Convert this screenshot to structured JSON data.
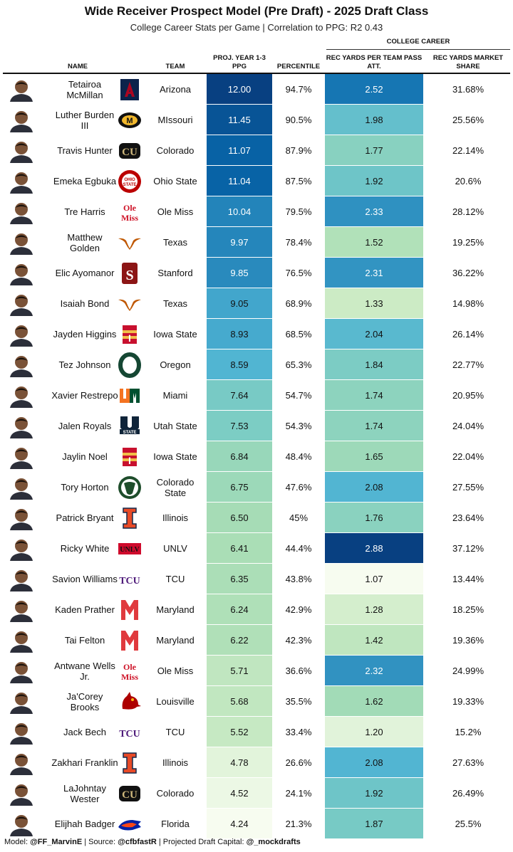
{
  "title": "Wide Receiver Prospect Model (Pre Draft) - 2025 Draft Class",
  "subtitle": "College Career Stats per Game | Correlation to PPG: R2 0.43",
  "group_header": "COLLEGE CAREER",
  "columns": {
    "name": "NAME",
    "team": "TEAM",
    "ppg": "PROJ. YEAR 1-3 PPG",
    "percentile": "PERCENTILE",
    "ypa": "REC YARDS PER TEAM PASS ATT.",
    "market_share": "REC YARDS MARKET SHARE"
  },
  "footer": {
    "model_label": "Model: ",
    "model_handle": "@FF_MarvinE",
    "source_label": " | Source: ",
    "source_handle": "@cfbfastR",
    "capital_label": " | Projected Draft Capital: ",
    "capital_handle": "@_mockdrafts"
  },
  "colors": {
    "ppg_scale": [
      "#f7fcf0",
      "#ccebc5",
      "#a8ddb5",
      "#7bccc4",
      "#4eb3d3",
      "#2b8cbe",
      "#0868ac",
      "#084081"
    ]
  },
  "chart_data": {
    "type": "table",
    "ppg_range": [
      4.24,
      12.0
    ],
    "ypa_range": [
      1.07,
      2.88
    ],
    "rows": [
      {
        "name": "Tetairoa McMillan",
        "team": "Arizona",
        "logo": "arizona-logo",
        "ppg": "12.00",
        "percentile": "94.7%",
        "ypa": "2.52",
        "market_share": "31.68%"
      },
      {
        "name": "Luther Burden III",
        "team": "MIssouri",
        "logo": "missouri-logo",
        "ppg": "11.45",
        "percentile": "90.5%",
        "ypa": "1.98",
        "market_share": "25.56%"
      },
      {
        "name": "Travis Hunter",
        "team": "Colorado",
        "logo": "colorado-logo",
        "ppg": "11.07",
        "percentile": "87.9%",
        "ypa": "1.77",
        "market_share": "22.14%"
      },
      {
        "name": "Emeka Egbuka",
        "team": "Ohio State",
        "logo": "ohio-state-logo",
        "ppg": "11.04",
        "percentile": "87.5%",
        "ypa": "1.92",
        "market_share": "20.6%"
      },
      {
        "name": "Tre Harris",
        "team": "Ole Miss",
        "logo": "ole-miss-logo",
        "ppg": "10.04",
        "percentile": "79.5%",
        "ypa": "2.33",
        "market_share": "28.12%"
      },
      {
        "name": "Matthew Golden",
        "team": "Texas",
        "logo": "texas-logo",
        "ppg": "9.97",
        "percentile": "78.4%",
        "ypa": "1.52",
        "market_share": "19.25%"
      },
      {
        "name": "Elic Ayomanor",
        "team": "Stanford",
        "logo": "stanford-logo",
        "ppg": "9.85",
        "percentile": "76.5%",
        "ypa": "2.31",
        "market_share": "36.22%"
      },
      {
        "name": "Isaiah Bond",
        "team": "Texas",
        "logo": "texas-logo",
        "ppg": "9.05",
        "percentile": "68.9%",
        "ypa": "1.33",
        "market_share": "14.98%"
      },
      {
        "name": "Jayden Higgins",
        "team": "Iowa State",
        "logo": "iowa-state-logo",
        "ppg": "8.93",
        "percentile": "68.5%",
        "ypa": "2.04",
        "market_share": "26.14%"
      },
      {
        "name": "Tez Johnson",
        "team": "Oregon",
        "logo": "oregon-logo",
        "ppg": "8.59",
        "percentile": "65.3%",
        "ypa": "1.84",
        "market_share": "22.77%"
      },
      {
        "name": "Xavier Restrepo",
        "team": "Miami",
        "logo": "miami-logo",
        "ppg": "7.64",
        "percentile": "54.7%",
        "ypa": "1.74",
        "market_share": "20.95%"
      },
      {
        "name": "Jalen Royals",
        "team": "Utah State",
        "logo": "utah-state-logo",
        "ppg": "7.53",
        "percentile": "54.3%",
        "ypa": "1.74",
        "market_share": "24.04%"
      },
      {
        "name": "Jaylin Noel",
        "team": "Iowa State",
        "logo": "iowa-state-logo",
        "ppg": "6.84",
        "percentile": "48.4%",
        "ypa": "1.65",
        "market_share": "22.04%"
      },
      {
        "name": "Tory Horton",
        "team": "Colorado State",
        "logo": "colorado-state-logo",
        "ppg": "6.75",
        "percentile": "47.6%",
        "ypa": "2.08",
        "market_share": "27.55%"
      },
      {
        "name": "Patrick Bryant",
        "team": "Illinois",
        "logo": "illinois-logo",
        "ppg": "6.50",
        "percentile": "45%",
        "ypa": "1.76",
        "market_share": "23.64%"
      },
      {
        "name": "Ricky White",
        "team": "UNLV",
        "logo": "unlv-logo",
        "ppg": "6.41",
        "percentile": "44.4%",
        "ypa": "2.88",
        "market_share": "37.12%"
      },
      {
        "name": "Savion Williams",
        "team": "TCU",
        "logo": "tcu-logo",
        "ppg": "6.35",
        "percentile": "43.8%",
        "ypa": "1.07",
        "market_share": "13.44%"
      },
      {
        "name": "Kaden Prather",
        "team": "Maryland",
        "logo": "maryland-logo",
        "ppg": "6.24",
        "percentile": "42.9%",
        "ypa": "1.28",
        "market_share": "18.25%"
      },
      {
        "name": "Tai Felton",
        "team": "Maryland",
        "logo": "maryland-logo",
        "ppg": "6.22",
        "percentile": "42.3%",
        "ypa": "1.42",
        "market_share": "19.36%"
      },
      {
        "name": "Antwane Wells Jr.",
        "team": "Ole Miss",
        "logo": "ole-miss-logo",
        "ppg": "5.71",
        "percentile": "36.6%",
        "ypa": "2.32",
        "market_share": "24.99%"
      },
      {
        "name": "Ja'Corey Brooks",
        "team": "Louisville",
        "logo": "louisville-logo",
        "ppg": "5.68",
        "percentile": "35.5%",
        "ypa": "1.62",
        "market_share": "19.33%"
      },
      {
        "name": "Jack Bech",
        "team": "TCU",
        "logo": "tcu-logo",
        "ppg": "5.52",
        "percentile": "33.4%",
        "ypa": "1.20",
        "market_share": "15.2%"
      },
      {
        "name": "Zakhari Franklin",
        "team": "Illinois",
        "logo": "illinois-logo",
        "ppg": "4.78",
        "percentile": "26.6%",
        "ypa": "2.08",
        "market_share": "27.63%"
      },
      {
        "name": "LaJohntay Wester",
        "team": "Colorado",
        "logo": "colorado-logo",
        "ppg": "4.52",
        "percentile": "24.1%",
        "ypa": "1.92",
        "market_share": "26.49%"
      },
      {
        "name": "Elijhah Badger",
        "team": "Florida",
        "logo": "florida-logo",
        "ppg": "4.24",
        "percentile": "21.3%",
        "ypa": "1.87",
        "market_share": "25.5%"
      }
    ]
  }
}
